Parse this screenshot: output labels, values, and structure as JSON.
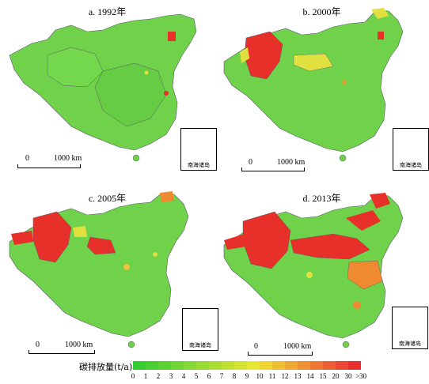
{
  "panels": [
    {
      "id": "a",
      "title": "a. 1992年",
      "inset_label": "南海诸岛",
      "scale_zero": "0",
      "scale_text": "1000 km"
    },
    {
      "id": "b",
      "title": "b. 2000年",
      "inset_label": "南海诸岛",
      "scale_zero": "0",
      "scale_text": "1000 km"
    },
    {
      "id": "c",
      "title": "c. 2005年",
      "inset_label": "南海诸岛",
      "scale_zero": "0",
      "scale_text": "1000 km"
    },
    {
      "id": "d",
      "title": "d. 2013年",
      "inset_label": "南海诸岛",
      "scale_zero": "0",
      "scale_text": "1000 km"
    }
  ],
  "legend": {
    "title": "碳排放量(t/a)",
    "labels": [
      "0",
      "1",
      "2",
      "3",
      "4",
      "5",
      "6",
      "7",
      "8",
      "9",
      "10",
      "11",
      "12",
      "13",
      "14",
      "15",
      "20",
      "30",
      ">30"
    ],
    "colors": [
      "#33cc33",
      "#47cf33",
      "#5bd233",
      "#6fd533",
      "#83d833",
      "#97db33",
      "#abde33",
      "#bfe133",
      "#d3e433",
      "#e7e733",
      "#f0d533",
      "#f0c033",
      "#f0a833",
      "#ef9033",
      "#ee7833",
      "#ed6033",
      "#ec4833",
      "#e83030"
    ]
  },
  "colors": {
    "land_green": "#6fd24a",
    "border": "#5a5a6a",
    "high_red": "#e8302a",
    "mid_orange": "#f08a30",
    "yellow": "#e0e040"
  }
}
